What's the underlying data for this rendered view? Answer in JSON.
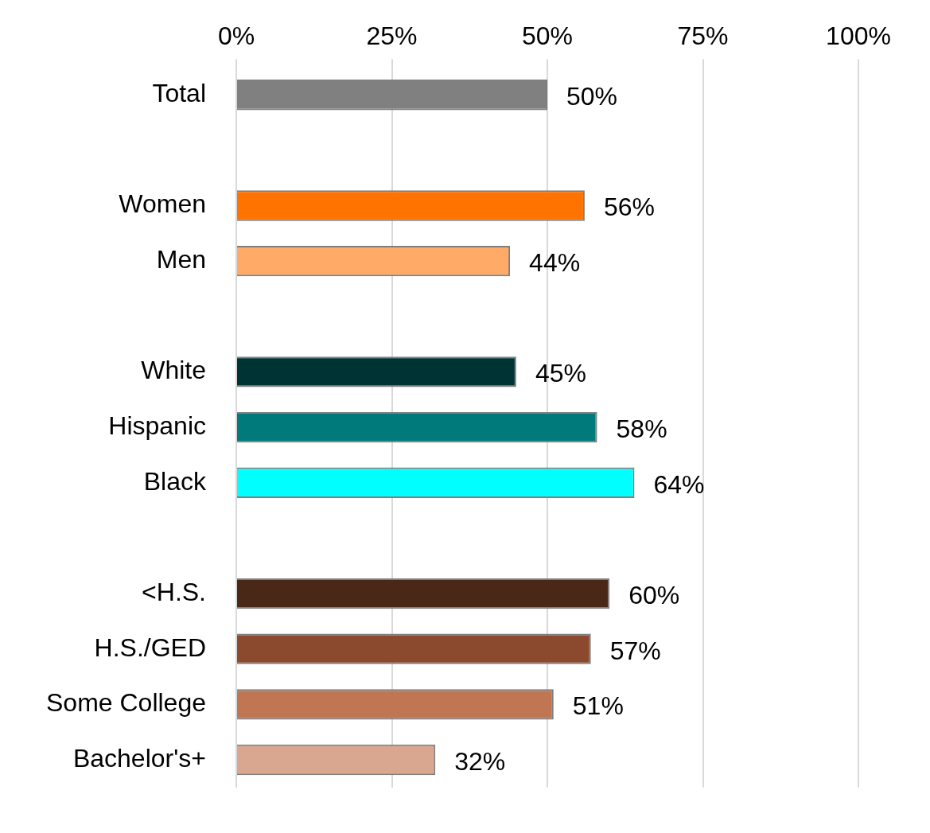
{
  "chart_data": {
    "type": "bar",
    "orientation": "horizontal",
    "categories": [
      "Total",
      null,
      "Women",
      "Men",
      null,
      "White",
      "Hispanic",
      "Black",
      null,
      "<H.S.",
      "H.S./GED",
      "Some College",
      "Bachelor's+"
    ],
    "values": [
      50,
      null,
      56,
      44,
      null,
      45,
      58,
      64,
      null,
      60,
      57,
      51,
      32
    ],
    "value_labels": [
      "50%",
      null,
      "56%",
      "44%",
      null,
      "45%",
      "58%",
      "64%",
      null,
      "60%",
      "57%",
      "51%",
      "32%"
    ],
    "colors": [
      "#808080",
      null,
      "#ff7300",
      "#ffaa66",
      null,
      "#003333",
      "#007a7a",
      "#00ffff",
      null,
      "#4a2818",
      "#8b4a2e",
      "#c07553",
      "#d9a68f"
    ],
    "data_labels": true,
    "grid": true,
    "xlim": [
      0,
      100
    ],
    "xticks": [
      {
        "value": 0,
        "label": "0%"
      },
      {
        "value": 25,
        "label": "25%"
      },
      {
        "value": 50,
        "label": "50%"
      },
      {
        "value": 75,
        "label": "75%"
      },
      {
        "value": 100,
        "label": "100%"
      }
    ]
  }
}
